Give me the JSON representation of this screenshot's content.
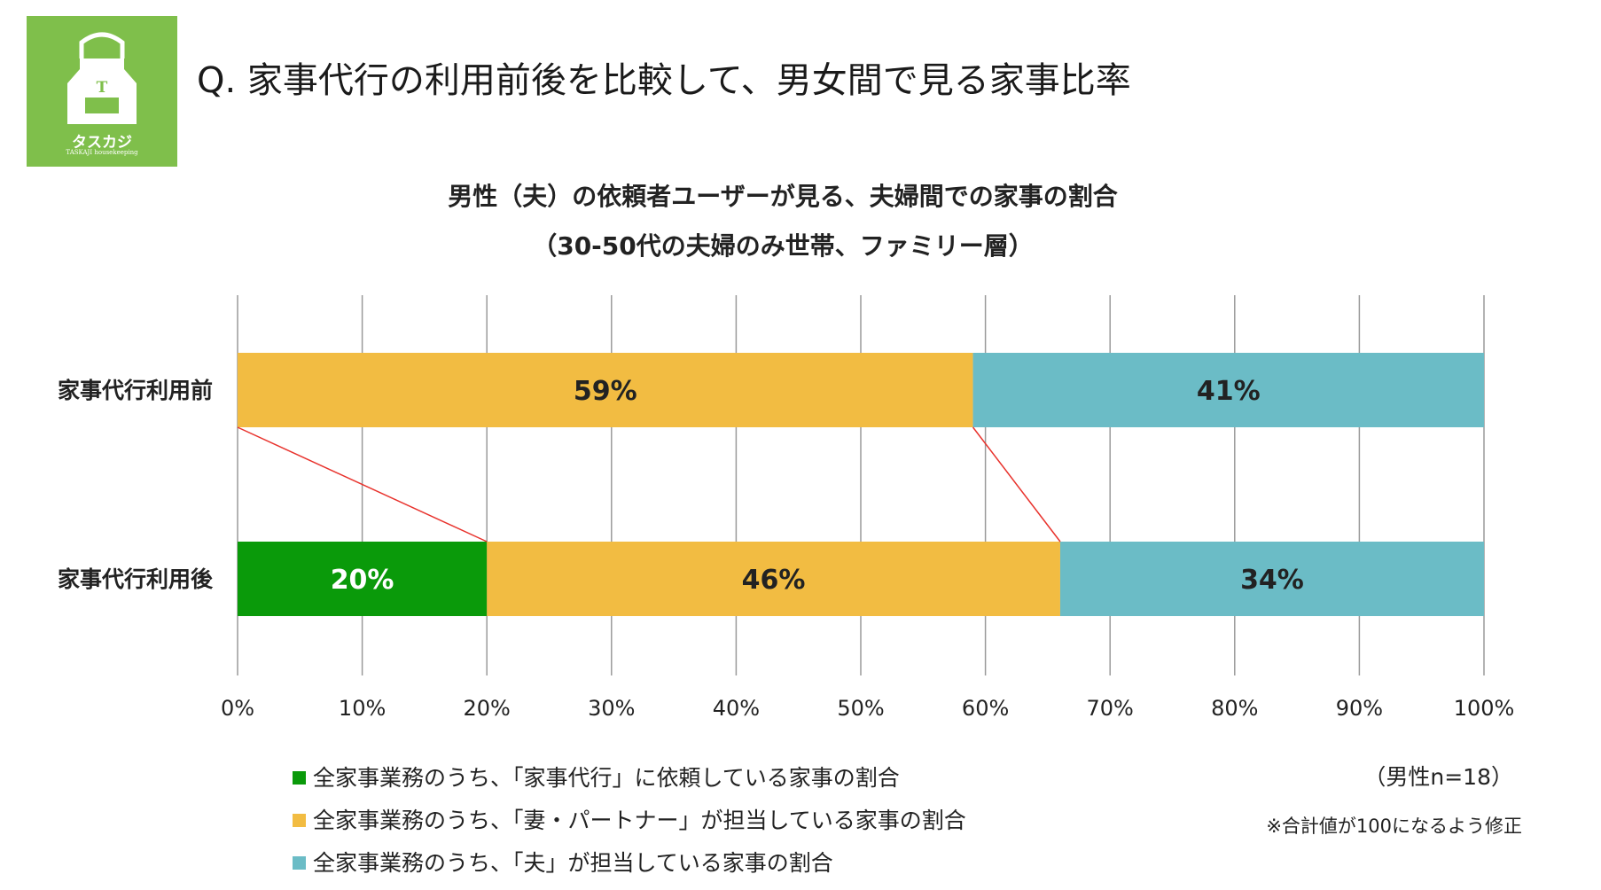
{
  "logo": {
    "letter": "T",
    "name": "タスカジ",
    "tagline": "TASKAJI  housekeeping"
  },
  "page_title": "Q. 家事代行の利用前後を比較して、男女間で見る家事比率",
  "colors": {
    "logo_bg": "#7fbf4b",
    "agency": "#0a9a0a",
    "wife": "#f2bc42",
    "husband": "#6bbcc6",
    "connector": "#e8322c",
    "grid": "#9a9a9a"
  },
  "chart_data": {
    "type": "bar",
    "orientation": "horizontal",
    "stacked": true,
    "title": "男性（夫）の依頼者ユーザーが見る、夫婦間での家事の割合",
    "subtitle": "（30-50代の夫婦のみ世帯、ファミリー層）",
    "categories": [
      "家事代行利用前",
      "家事代行利用後"
    ],
    "series": [
      {
        "name": "全家事業務のうち、「家事代行」に依頼している家事の割合",
        "values": [
          0,
          20
        ],
        "labels": [
          "",
          "20%"
        ],
        "color": "#0a9a0a"
      },
      {
        "name": "全家事業務のうち、「妻・パートナー」が担当している家事の割合",
        "values": [
          59,
          46
        ],
        "labels": [
          "59%",
          "46%"
        ],
        "color": "#f2bc42"
      },
      {
        "name": "全家事業務のうち、「夫」が担当している家事の割合",
        "values": [
          41,
          34
        ],
        "labels": [
          "41%",
          "34%"
        ],
        "color": "#6bbcc6"
      }
    ],
    "xlim": [
      0,
      100
    ],
    "xticks": [
      "0%",
      "10%",
      "20%",
      "30%",
      "40%",
      "50%",
      "60%",
      "70%",
      "80%",
      "90%",
      "100%"
    ],
    "grid": true,
    "legend_position": "bottom-left",
    "connector_lines": [
      {
        "from_value": 0,
        "to_value": 20
      },
      {
        "from_value": 59,
        "to_value": 66
      }
    ]
  },
  "sample_note": "（男性n=18）",
  "footnote": "※合計値が100になるよう修正"
}
